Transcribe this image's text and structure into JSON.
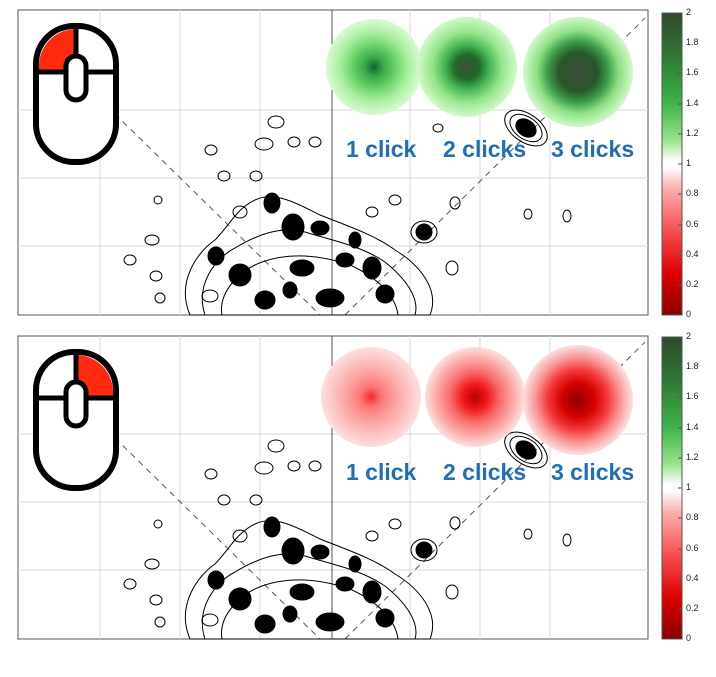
{
  "panels": [
    {
      "id": "left-click",
      "mouse_highlight": "left-button",
      "highlight_color": "#ff2a10",
      "blob_palette": "green",
      "click_labels": [
        "1 click",
        "2 clicks",
        "3 clicks"
      ]
    },
    {
      "id": "right-click",
      "mouse_highlight": "right-button",
      "highlight_color": "#ff2a10",
      "blob_palette": "red",
      "click_labels": [
        "1 click",
        "2 clicks",
        "3 clicks"
      ]
    }
  ],
  "colorbar": {
    "ticks": [
      "2",
      "1.8",
      "1.6",
      "1.4",
      "1.2",
      "1",
      "0.8",
      "0.6",
      "0.4",
      "0.2",
      "0"
    ],
    "high_color": "#1f5e2a",
    "low_color": "#8b0000",
    "mid_color": "#ffffff"
  },
  "colors": {
    "label_blue": "#1f6fb2",
    "contour_black": "#000000",
    "grid_gray": "#d9d9d9"
  },
  "icons": {
    "mouse": "mouse-icon"
  }
}
